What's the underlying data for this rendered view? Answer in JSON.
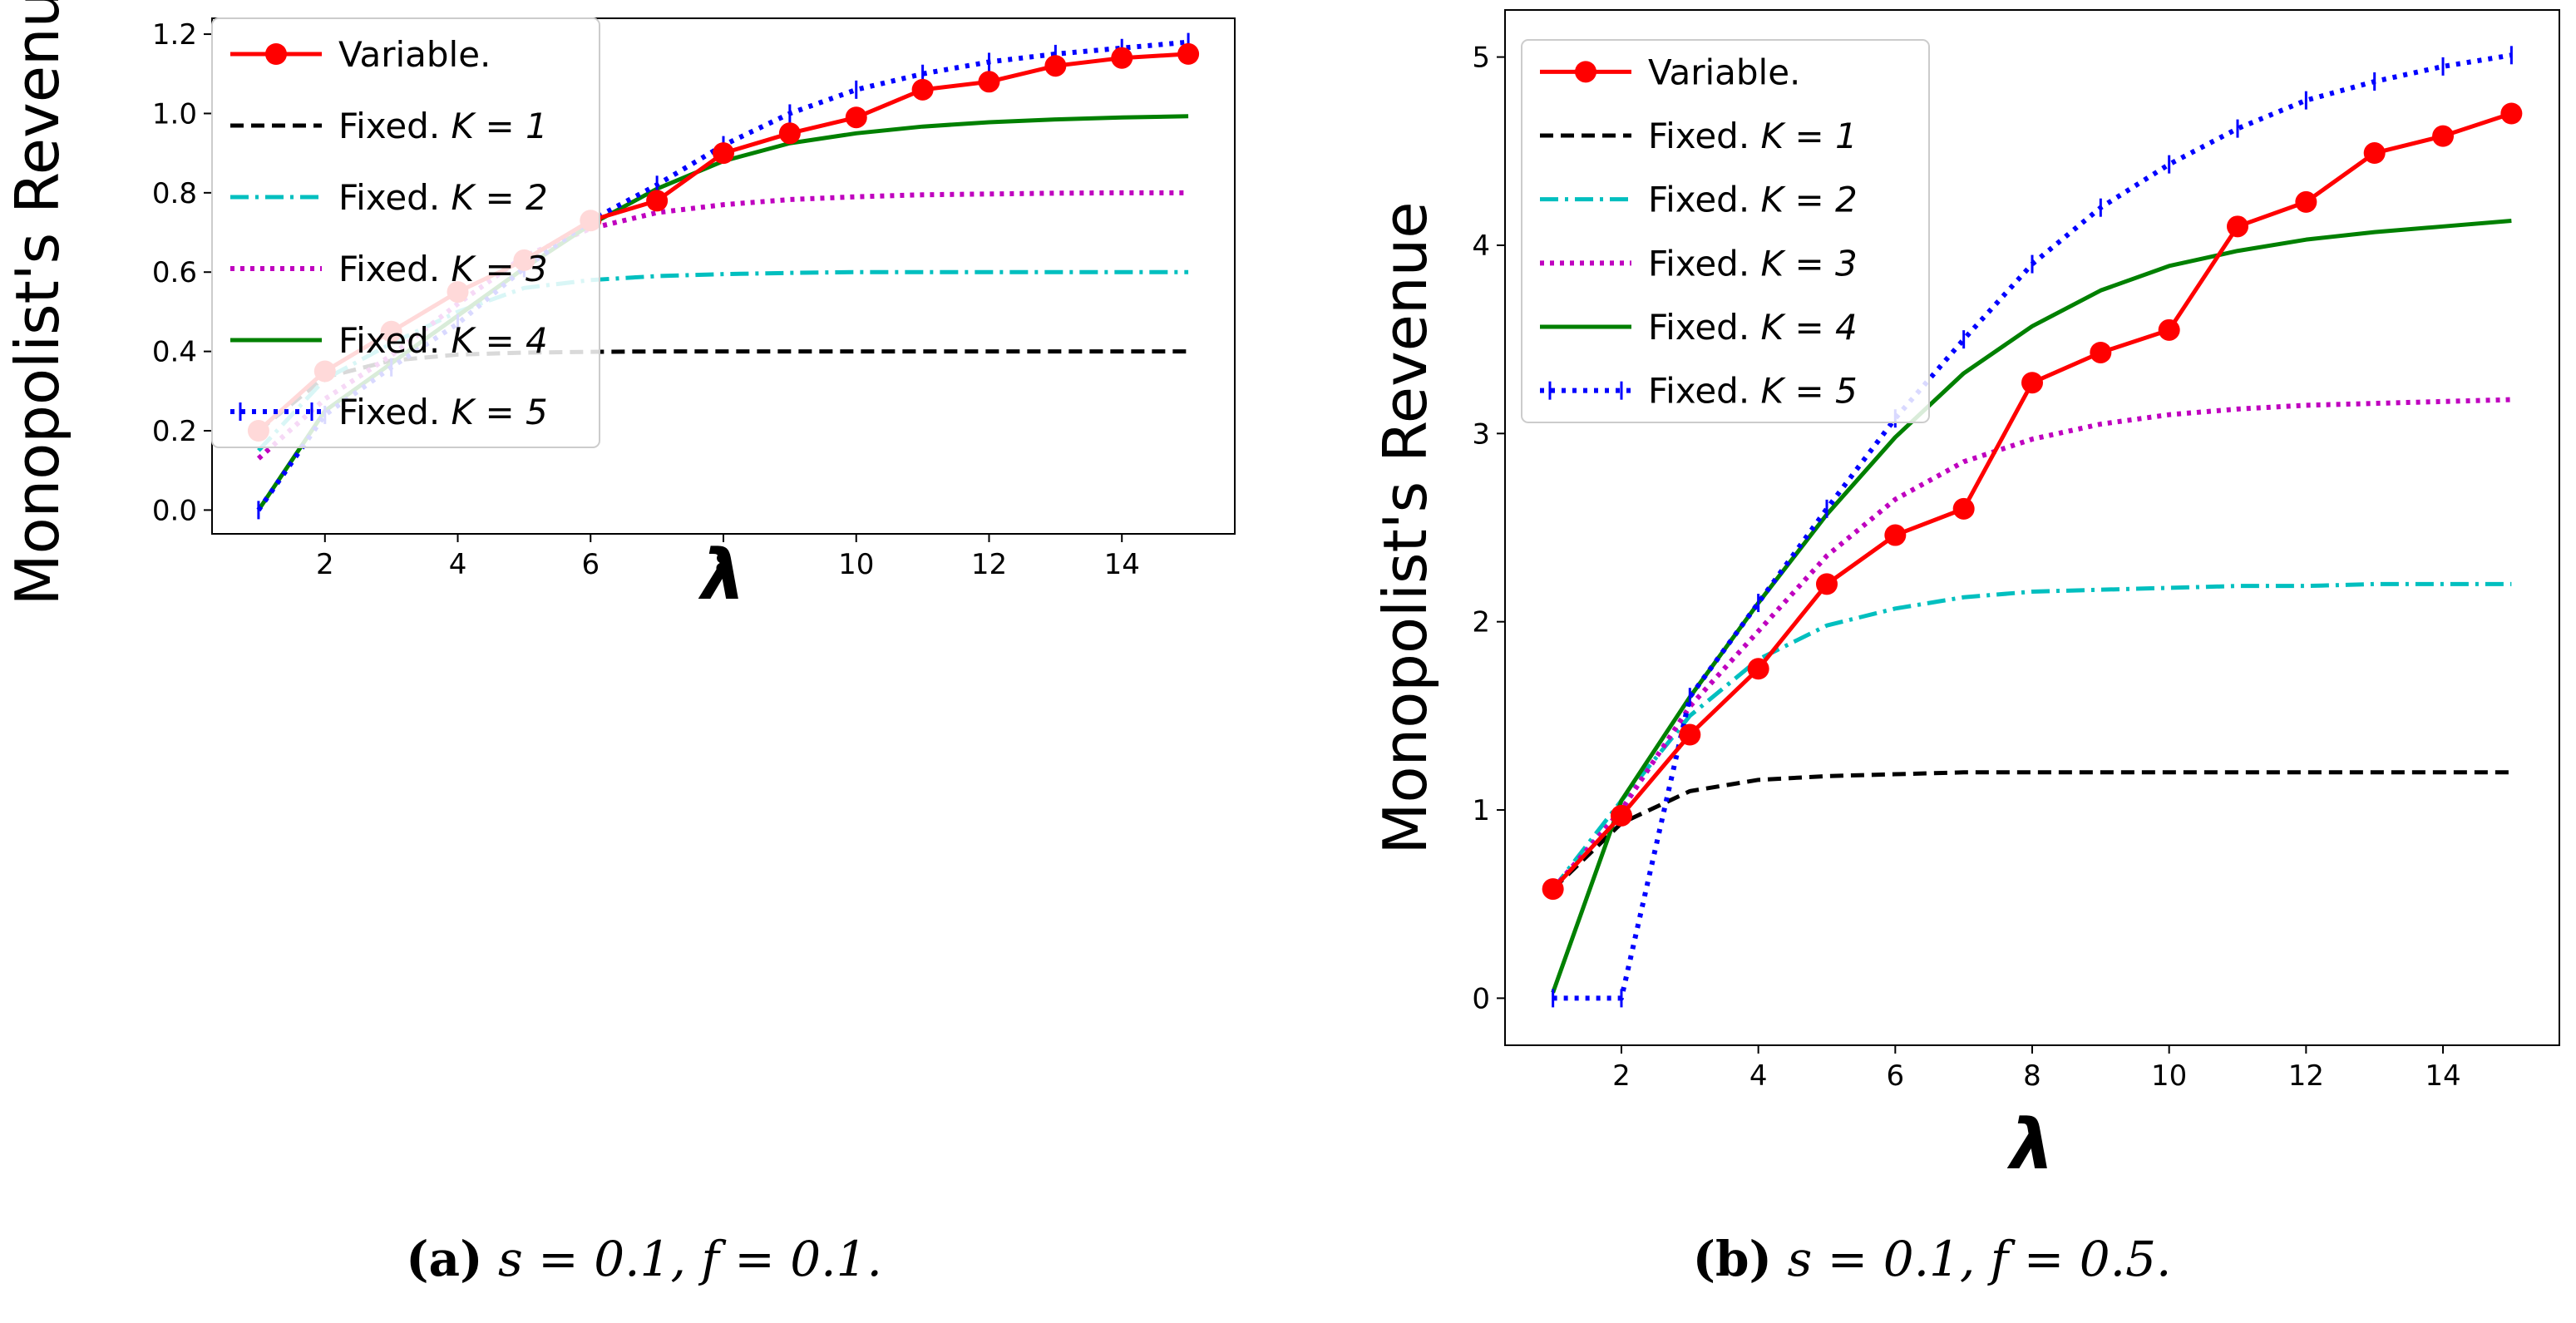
{
  "colors": {
    "variable": "#ff0000",
    "fixed_k1": "#000000",
    "fixed_k2": "#00bfbf",
    "fixed_k3": "#bf00bf",
    "fixed_k4": "#008000",
    "fixed_k5": "#0000ff"
  },
  "chart_data": [
    {
      "type": "line",
      "panel": "a",
      "xlabel": "λ",
      "ylabel": "Monopolist's Revenue",
      "xlim": [
        0.3,
        15.7
      ],
      "ylim": [
        -0.06,
        1.24
      ],
      "xticks": [
        2,
        4,
        6,
        8,
        10,
        12,
        14
      ],
      "yticks": [
        "0.0",
        "0.2",
        "0.4",
        "0.6",
        "0.8",
        "1.0",
        "1.2"
      ],
      "legend_position": "upper-left",
      "legend": [
        {
          "prefix": "Variable.",
          "k": ""
        },
        {
          "prefix": "Fixed. ",
          "k": "K = 1"
        },
        {
          "prefix": "Fixed. ",
          "k": "K = 2"
        },
        {
          "prefix": "Fixed. ",
          "k": "K = 3"
        },
        {
          "prefix": "Fixed. ",
          "k": "K = 4"
        },
        {
          "prefix": "Fixed. ",
          "k": "K = 5"
        }
      ],
      "x": [
        1,
        2,
        3,
        4,
        5,
        6,
        7,
        8,
        9,
        10,
        11,
        12,
        13,
        14,
        15
      ],
      "series": [
        {
          "name": "Variable.",
          "values": [
            0.2,
            0.35,
            0.45,
            0.55,
            0.63,
            0.73,
            0.78,
            0.9,
            0.95,
            0.99,
            1.06,
            1.08,
            1.12,
            1.14,
            1.15
          ]
        },
        {
          "name": "Fixed. K = 1",
          "values": [
            0.2,
            0.335,
            0.377,
            0.392,
            0.397,
            0.399,
            0.4,
            0.4,
            0.4,
            0.4,
            0.4,
            0.4,
            0.4,
            0.4,
            0.4
          ]
        },
        {
          "name": "Fixed. K = 2",
          "values": [
            0.15,
            0.33,
            0.42,
            0.5,
            0.56,
            0.58,
            0.59,
            0.595,
            0.598,
            0.6,
            0.6,
            0.6,
            0.6,
            0.6,
            0.6
          ]
        },
        {
          "name": "Fixed. K = 3",
          "values": [
            0.13,
            0.28,
            0.39,
            0.52,
            0.64,
            0.71,
            0.75,
            0.77,
            0.783,
            0.79,
            0.795,
            0.797,
            0.799,
            0.8,
            0.8
          ]
        },
        {
          "name": "Fixed. K = 4",
          "values": [
            0.0,
            0.25,
            0.37,
            0.49,
            0.61,
            0.72,
            0.81,
            0.88,
            0.925,
            0.95,
            0.967,
            0.978,
            0.985,
            0.99,
            0.993
          ]
        },
        {
          "name": "Fixed. K = 5",
          "values": [
            0.0,
            0.24,
            0.36,
            0.47,
            0.61,
            0.73,
            0.82,
            0.92,
            1.0,
            1.06,
            1.1,
            1.13,
            1.15,
            1.165,
            1.18
          ]
        }
      ],
      "caption": {
        "label": "(a)",
        "math": "s = 0.1, f = 0.1."
      }
    },
    {
      "type": "line",
      "panel": "b",
      "xlabel": "λ",
      "ylabel": "Monopolist's Revenue",
      "xlim": [
        0.3,
        15.7
      ],
      "ylim": [
        -0.25,
        5.25
      ],
      "xticks": [
        2,
        4,
        6,
        8,
        10,
        12,
        14
      ],
      "yticks": [
        "0",
        "1",
        "2",
        "3",
        "4",
        "5"
      ],
      "legend_position": "upper-left",
      "legend": [
        {
          "prefix": "Variable.",
          "k": ""
        },
        {
          "prefix": "Fixed. ",
          "k": "K = 1"
        },
        {
          "prefix": "Fixed. ",
          "k": "K = 2"
        },
        {
          "prefix": "Fixed. ",
          "k": "K = 3"
        },
        {
          "prefix": "Fixed. ",
          "k": "K = 4"
        },
        {
          "prefix": "Fixed. ",
          "k": "K = 5"
        }
      ],
      "x": [
        1,
        2,
        3,
        4,
        5,
        6,
        7,
        8,
        9,
        10,
        11,
        12,
        13,
        14,
        15
      ],
      "series": [
        {
          "name": "Variable.",
          "values": [
            0.58,
            0.97,
            1.4,
            1.75,
            2.2,
            2.46,
            2.6,
            3.27,
            3.43,
            3.55,
            4.1,
            4.23,
            4.49,
            4.58,
            4.7
          ]
        },
        {
          "name": "Fixed. K = 1",
          "values": [
            0.58,
            0.93,
            1.1,
            1.16,
            1.18,
            1.19,
            1.2,
            1.2,
            1.2,
            1.2,
            1.2,
            1.2,
            1.2,
            1.2,
            1.2
          ]
        },
        {
          "name": "Fixed. K = 2",
          "values": [
            0.58,
            1.05,
            1.5,
            1.8,
            1.98,
            2.07,
            2.13,
            2.16,
            2.17,
            2.18,
            2.19,
            2.19,
            2.2,
            2.2,
            2.2
          ]
        },
        {
          "name": "Fixed. K = 3",
          "values": [
            0.58,
            1.0,
            1.55,
            1.95,
            2.35,
            2.65,
            2.85,
            2.97,
            3.05,
            3.1,
            3.13,
            3.15,
            3.16,
            3.17,
            3.18
          ]
        },
        {
          "name": "Fixed. K = 4",
          "values": [
            0.03,
            1.05,
            1.6,
            2.1,
            2.57,
            2.98,
            3.32,
            3.57,
            3.76,
            3.89,
            3.97,
            4.03,
            4.07,
            4.1,
            4.13
          ]
        },
        {
          "name": "Fixed. K = 5",
          "values": [
            0.0,
            0.0,
            1.6,
            2.1,
            2.6,
            3.08,
            3.5,
            3.9,
            4.2,
            4.43,
            4.62,
            4.77,
            4.87,
            4.95,
            5.01
          ]
        }
      ],
      "caption": {
        "label": "(b)",
        "math": "s = 0.1, f = 0.5."
      }
    }
  ]
}
